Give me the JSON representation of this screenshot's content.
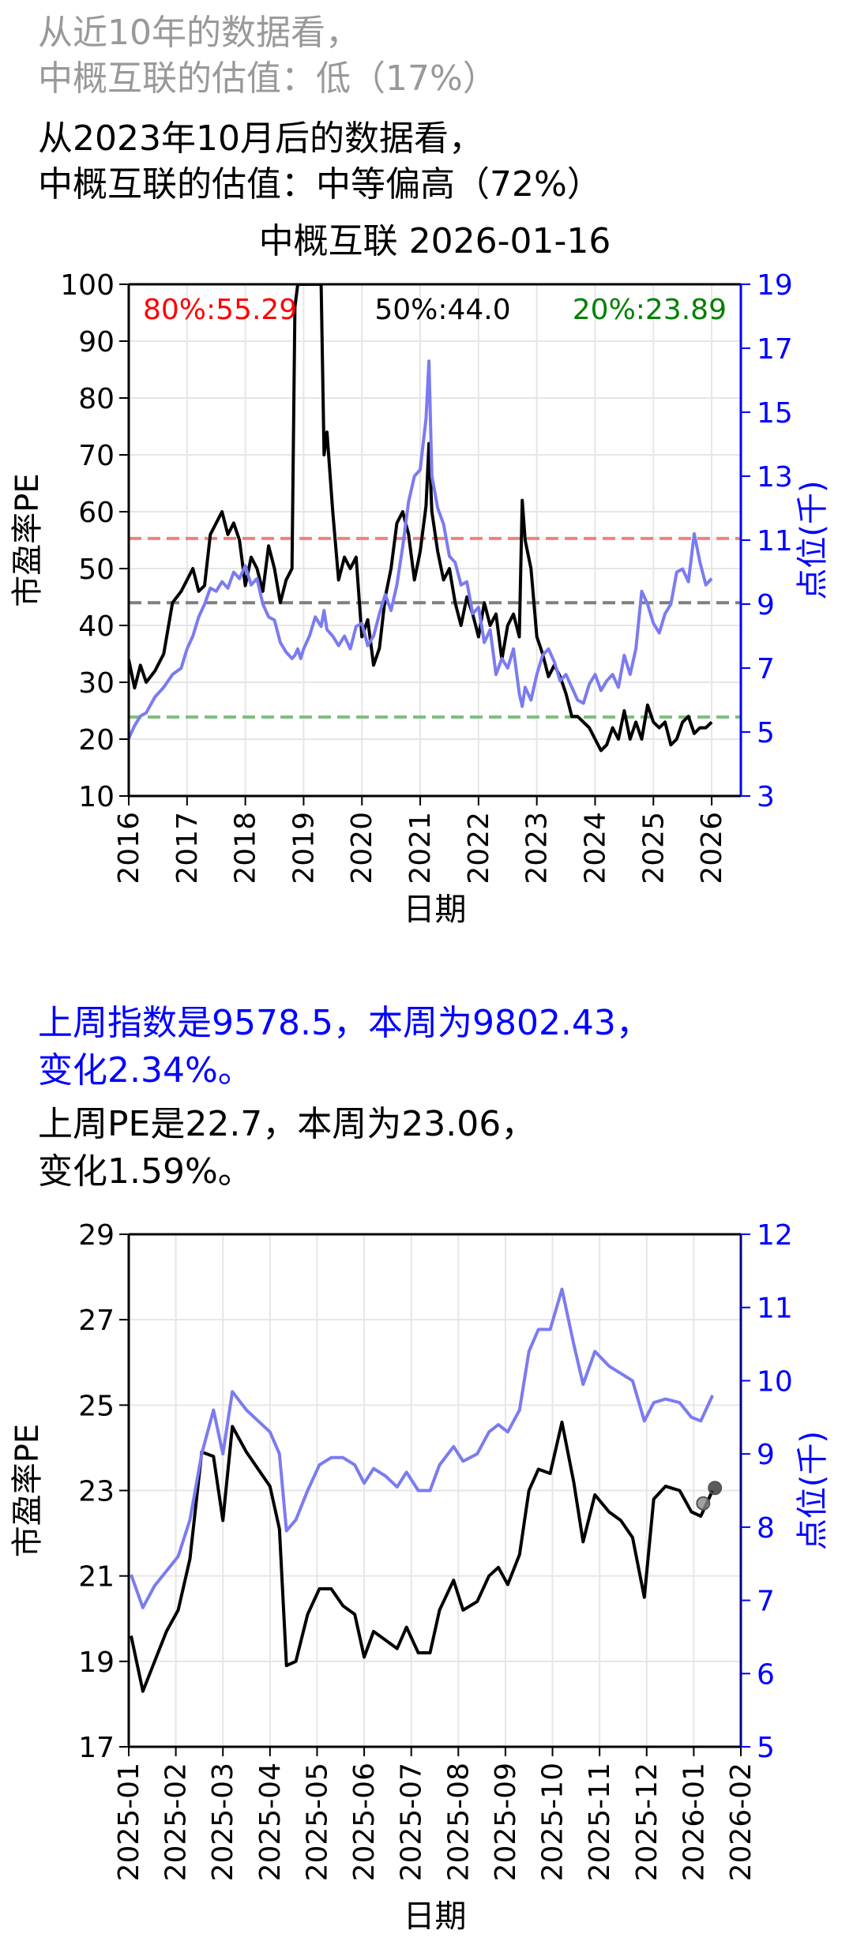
{
  "header": {
    "line1": "从近10年的数据看，",
    "line2": "中概互联的估值：低（17%）",
    "line3": "从2023年10月后的数据看，",
    "line4": "中概互联的估值：中等偏高（72%）"
  },
  "summary": {
    "index_line1": "上周指数是9578.5，本周为9802.43，",
    "index_line2": "变化2.34%。",
    "pe_line1": "上周PE是22.7，本周为23.06，",
    "pe_line2": "变化1.59%。"
  },
  "colors": {
    "pe": "#000000",
    "index": "#7b7bf0",
    "p80": "#f08080",
    "p50": "#7f7f7f",
    "p20": "#7fbf7f",
    "right_axis": "#0000ff"
  },
  "chart_data": [
    {
      "type": "line",
      "title": "中概互联 2026-01-16",
      "xlabel": "日期",
      "ylabel": "市盈率PE",
      "y2label": "点位(千)",
      "xlim": [
        2016,
        2026.5
      ],
      "ylim": [
        10,
        100
      ],
      "y2lim": [
        3,
        19
      ],
      "xticks": [
        "2016",
        "2017",
        "2018",
        "2019",
        "2020",
        "2021",
        "2022",
        "2023",
        "2024",
        "2025",
        "2026"
      ],
      "yticks": [
        "10",
        "20",
        "30",
        "40",
        "50",
        "60",
        "70",
        "80",
        "90",
        "100"
      ],
      "y2ticks": [
        "3",
        "5",
        "7",
        "9",
        "11",
        "13",
        "15",
        "17",
        "19"
      ],
      "grid": true,
      "annotations": [
        {
          "label": "80%:55.29",
          "value": 55.29,
          "color": "#ff0000"
        },
        {
          "label": "50%:44.0",
          "value": 44.0,
          "color": "#000000"
        },
        {
          "label": "20%:23.89",
          "value": 23.89,
          "color": "#008000"
        }
      ],
      "series": [
        {
          "axis": "left",
          "x": [
            2016.0,
            2016.1,
            2016.2,
            2016.3,
            2016.45,
            2016.6,
            2016.75,
            2016.9,
            2017.0,
            2017.1,
            2017.2,
            2017.3,
            2017.4,
            2017.5,
            2017.6,
            2017.7,
            2017.8,
            2017.9,
            2018.0,
            2018.1,
            2018.2,
            2018.3,
            2018.4,
            2018.5,
            2018.6,
            2018.7,
            2018.8,
            2018.85,
            2018.9,
            2018.95,
            2019.0,
            2019.1,
            2019.2,
            2019.3,
            2019.35,
            2019.4,
            2019.5,
            2019.6,
            2019.7,
            2019.8,
            2019.9,
            2020.0,
            2020.1,
            2020.2,
            2020.3,
            2020.4,
            2020.5,
            2020.6,
            2020.7,
            2020.8,
            2020.9,
            2021.0,
            2021.1,
            2021.15,
            2021.2,
            2021.3,
            2021.4,
            2021.5,
            2021.6,
            2021.7,
            2021.8,
            2021.9,
            2022.0,
            2022.1,
            2022.2,
            2022.3,
            2022.4,
            2022.5,
            2022.6,
            2022.7,
            2022.75,
            2022.8,
            2022.9,
            2023.0,
            2023.1,
            2023.2,
            2023.3,
            2023.4,
            2023.5,
            2023.6,
            2023.7,
            2023.8,
            2023.9,
            2024.0,
            2024.1,
            2024.2,
            2024.3,
            2024.4,
            2024.5,
            2024.6,
            2024.7,
            2024.8,
            2024.9,
            2025.0,
            2025.1,
            2025.2,
            2025.3,
            2025.4,
            2025.5,
            2025.6,
            2025.7,
            2025.8,
            2025.9,
            2026.0
          ],
          "values": [
            34,
            29,
            33,
            30,
            32,
            35,
            44,
            46,
            48,
            50,
            46,
            47,
            56,
            58,
            60,
            56,
            58,
            55,
            47,
            52,
            50,
            46,
            54,
            50,
            44,
            48,
            50,
            96,
            100,
            100,
            100,
            100,
            100,
            100,
            70,
            74,
            60,
            48,
            52,
            50,
            52,
            38,
            41,
            33,
            36,
            45,
            50,
            58,
            60,
            56,
            48,
            53,
            61,
            72,
            60,
            53,
            48,
            50,
            44,
            40,
            45,
            42,
            38,
            44,
            40,
            42,
            34,
            40,
            42,
            38,
            62,
            55,
            50,
            38,
            35,
            31,
            33,
            31,
            28,
            24,
            24,
            23,
            22,
            20,
            18,
            19,
            22,
            20,
            25,
            20,
            23,
            20,
            26,
            23,
            22,
            23,
            19,
            20,
            23,
            24,
            21,
            22,
            22,
            23
          ]
        },
        {
          "axis": "right",
          "x": [
            2016.0,
            2016.1,
            2016.2,
            2016.3,
            2016.45,
            2016.6,
            2016.75,
            2016.9,
            2017.0,
            2017.1,
            2017.2,
            2017.3,
            2017.4,
            2017.5,
            2017.6,
            2017.7,
            2017.8,
            2017.9,
            2018.0,
            2018.1,
            2018.2,
            2018.3,
            2018.4,
            2018.5,
            2018.6,
            2018.7,
            2018.8,
            2018.85,
            2018.9,
            2018.95,
            2019.0,
            2019.1,
            2019.2,
            2019.3,
            2019.35,
            2019.4,
            2019.5,
            2019.6,
            2019.7,
            2019.8,
            2019.9,
            2020.0,
            2020.1,
            2020.2,
            2020.3,
            2020.4,
            2020.5,
            2020.6,
            2020.7,
            2020.8,
            2020.9,
            2021.0,
            2021.1,
            2021.15,
            2021.2,
            2021.3,
            2021.4,
            2021.5,
            2021.6,
            2021.7,
            2021.8,
            2021.9,
            2022.0,
            2022.1,
            2022.2,
            2022.3,
            2022.4,
            2022.5,
            2022.6,
            2022.7,
            2022.75,
            2022.8,
            2022.9,
            2023.0,
            2023.1,
            2023.2,
            2023.3,
            2023.4,
            2023.5,
            2023.6,
            2023.7,
            2023.8,
            2023.9,
            2024.0,
            2024.1,
            2024.2,
            2024.3,
            2024.4,
            2024.5,
            2024.6,
            2024.7,
            2024.8,
            2024.9,
            2025.0,
            2025.1,
            2025.2,
            2025.3,
            2025.4,
            2025.5,
            2025.6,
            2025.7,
            2025.8,
            2025.9,
            2026.0
          ],
          "values": [
            4.8,
            5.2,
            5.5,
            5.6,
            6.1,
            6.4,
            6.8,
            7.0,
            7.6,
            8.0,
            8.6,
            9.0,
            9.5,
            9.4,
            9.7,
            9.5,
            10.0,
            9.8,
            10.2,
            9.6,
            9.8,
            9.0,
            8.6,
            8.5,
            7.8,
            7.5,
            7.3,
            7.4,
            7.6,
            7.3,
            7.6,
            8.0,
            8.6,
            8.3,
            8.8,
            8.2,
            8.0,
            7.7,
            8.0,
            7.6,
            8.3,
            8.4,
            7.7,
            8.0,
            8.7,
            9.3,
            8.8,
            9.6,
            10.8,
            12.2,
            13.0,
            13.2,
            14.8,
            16.6,
            13.0,
            12.0,
            11.5,
            10.5,
            10.3,
            9.6,
            9.7,
            8.7,
            8.9,
            7.8,
            8.2,
            6.8,
            7.3,
            7.0,
            7.6,
            6.2,
            5.8,
            6.4,
            6.0,
            6.8,
            7.4,
            7.6,
            7.2,
            6.6,
            6.8,
            6.4,
            6.0,
            5.9,
            6.5,
            6.8,
            6.3,
            6.6,
            6.8,
            6.4,
            7.4,
            6.8,
            7.6,
            9.4,
            9.0,
            8.4,
            8.1,
            8.7,
            9.0,
            10.0,
            10.1,
            9.7,
            11.2,
            10.3,
            9.6,
            9.8
          ]
        }
      ]
    },
    {
      "type": "line",
      "xlabel": "日期",
      "ylabel": "市盈率PE",
      "y2label": "点位(千)",
      "xlim": [
        0,
        13
      ],
      "ylim": [
        17,
        29
      ],
      "y2lim": [
        5,
        12
      ],
      "xticks": [
        "2025-01",
        "2025-02",
        "2025-03",
        "2025-04",
        "2025-05",
        "2025-06",
        "2025-07",
        "2025-08",
        "2025-09",
        "2025-10",
        "2025-11",
        "2025-12",
        "2026-01",
        "2026-02"
      ],
      "yticks": [
        "17",
        "19",
        "21",
        "23",
        "25",
        "27",
        "29"
      ],
      "y2ticks": [
        "5",
        "6",
        "7",
        "8",
        "9",
        "10",
        "11",
        "12"
      ],
      "grid": true,
      "series": [
        {
          "axis": "left",
          "x": [
            0.05,
            0.3,
            0.55,
            0.8,
            1.05,
            1.3,
            1.55,
            1.8,
            2.0,
            2.2,
            2.5,
            2.75,
            3.0,
            3.2,
            3.35,
            3.55,
            3.8,
            4.05,
            4.3,
            4.55,
            4.8,
            5.0,
            5.2,
            5.45,
            5.7,
            5.9,
            6.15,
            6.4,
            6.6,
            6.9,
            7.1,
            7.4,
            7.65,
            7.85,
            8.05,
            8.3,
            8.5,
            8.7,
            8.95,
            9.2,
            9.45,
            9.65,
            9.9,
            10.2,
            10.45,
            10.7,
            10.95,
            11.15,
            11.4,
            11.7,
            11.95,
            12.15,
            12.4
          ],
          "values": [
            19.6,
            18.3,
            19.0,
            19.7,
            20.2,
            21.4,
            23.9,
            23.8,
            22.3,
            24.5,
            23.9,
            23.5,
            23.1,
            22.1,
            18.9,
            19.0,
            20.1,
            20.7,
            20.7,
            20.3,
            20.1,
            19.1,
            19.7,
            19.5,
            19.3,
            19.8,
            19.2,
            19.2,
            20.2,
            20.9,
            20.2,
            20.4,
            21.0,
            21.2,
            20.8,
            21.5,
            23.0,
            23.5,
            23.4,
            24.6,
            23.2,
            21.8,
            22.9,
            22.5,
            22.3,
            21.9,
            20.5,
            22.8,
            23.1,
            23.0,
            22.5,
            22.4,
            23.0
          ]
        },
        {
          "axis": "right",
          "x": [
            0.05,
            0.3,
            0.55,
            0.8,
            1.05,
            1.3,
            1.55,
            1.8,
            2.0,
            2.2,
            2.5,
            2.75,
            3.0,
            3.2,
            3.35,
            3.55,
            3.8,
            4.05,
            4.3,
            4.55,
            4.8,
            5.0,
            5.2,
            5.45,
            5.7,
            5.9,
            6.15,
            6.4,
            6.6,
            6.9,
            7.1,
            7.4,
            7.65,
            7.85,
            8.05,
            8.3,
            8.5,
            8.7,
            8.95,
            9.2,
            9.45,
            9.65,
            9.9,
            10.2,
            10.45,
            10.7,
            10.95,
            11.15,
            11.4,
            11.7,
            11.95,
            12.15,
            12.4
          ],
          "values": [
            7.35,
            6.9,
            7.2,
            7.4,
            7.6,
            8.1,
            9.0,
            9.6,
            9.0,
            9.85,
            9.6,
            9.45,
            9.3,
            9.0,
            7.95,
            8.1,
            8.5,
            8.85,
            8.95,
            8.95,
            8.85,
            8.6,
            8.8,
            8.7,
            8.55,
            8.75,
            8.5,
            8.5,
            8.85,
            9.1,
            8.9,
            9.0,
            9.3,
            9.4,
            9.3,
            9.6,
            10.4,
            10.7,
            10.7,
            11.25,
            10.5,
            9.95,
            10.4,
            10.2,
            10.1,
            10.0,
            9.45,
            9.7,
            9.75,
            9.7,
            9.5,
            9.45,
            9.8
          ]
        }
      ],
      "markers": [
        {
          "x": 12.2,
          "value": 22.7
        },
        {
          "x": 12.45,
          "value": 23.06
        }
      ]
    }
  ]
}
